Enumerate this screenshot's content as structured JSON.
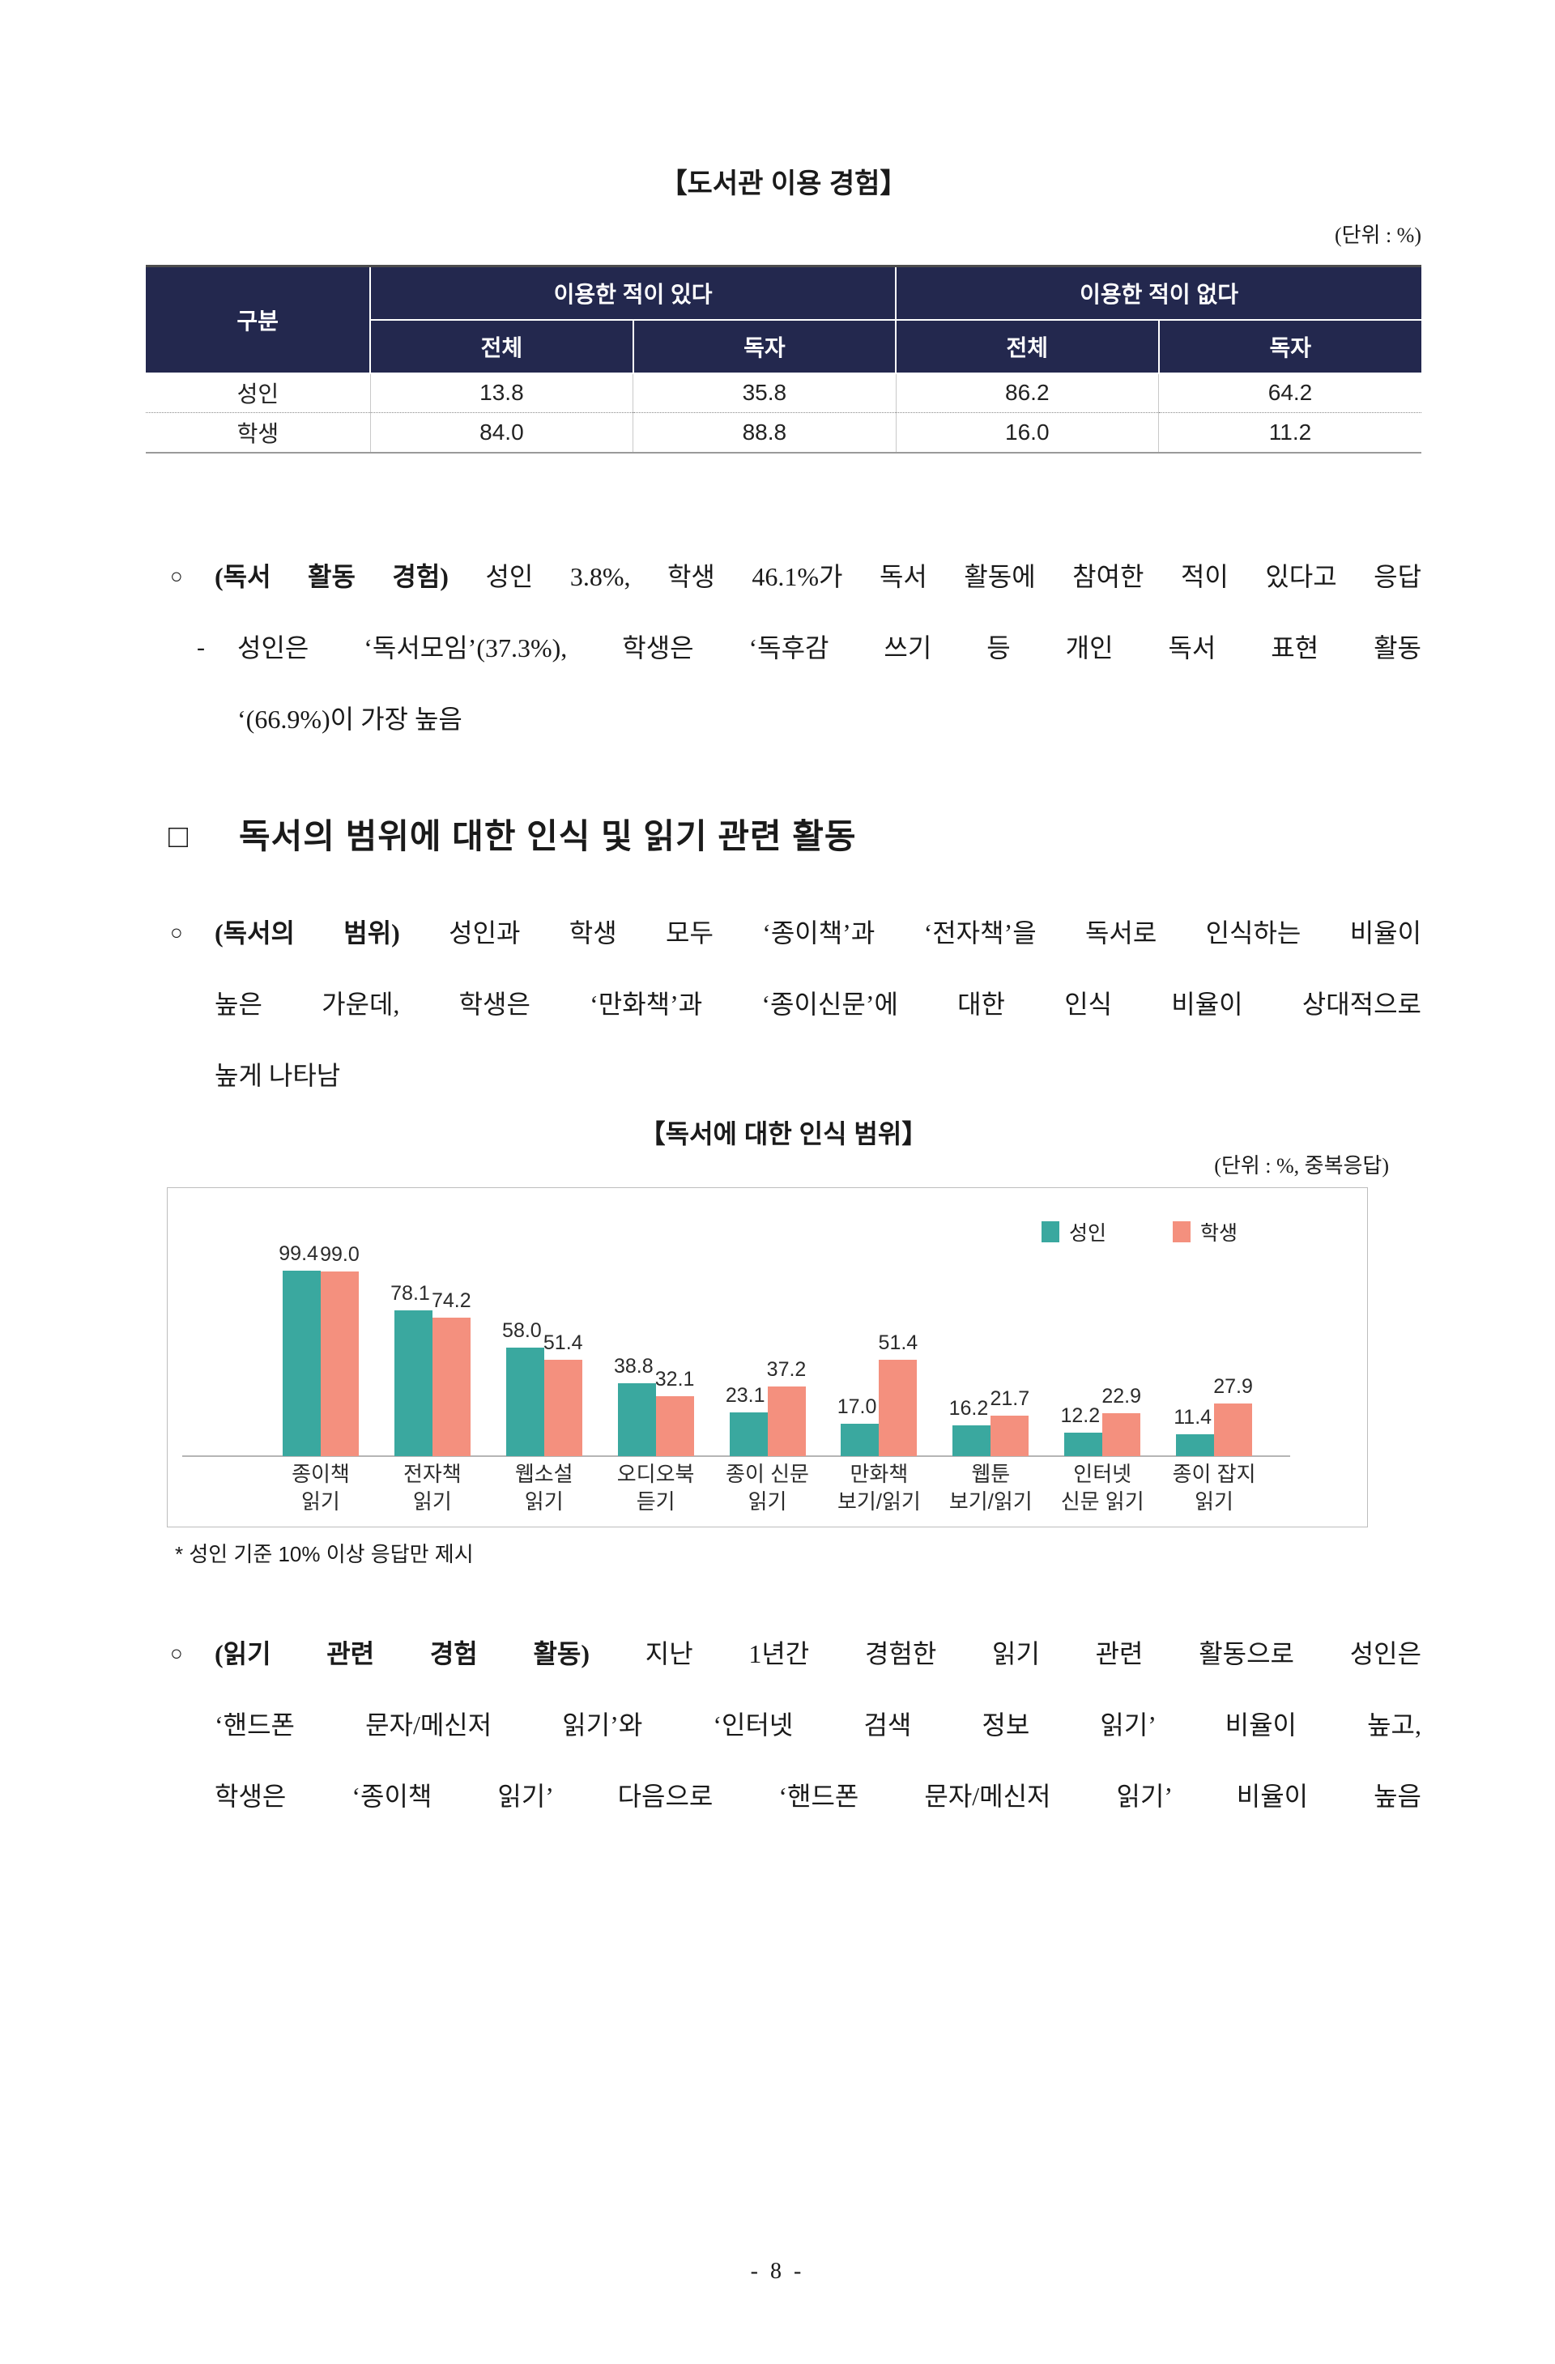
{
  "palette": {
    "table_header_bg": "#23284e",
    "adult_color": "#3aa89f",
    "student_color": "#f4907e",
    "text_color": "#1a1a1a"
  },
  "doc": {
    "page_number": "- 8 -"
  },
  "table_section": {
    "title": "【도서관 이용 경험】",
    "unit_label": "(단위 : %)",
    "table": {
      "corner_header": "구분",
      "group_headers": [
        "이용한 적이 있다",
        "이용한 적이 없다"
      ],
      "sub_headers": [
        "전체",
        "독자",
        "전체",
        "독자"
      ],
      "rows": [
        {
          "label": "성인",
          "values": [
            "13.8",
            "35.8",
            "86.2",
            "64.2"
          ]
        },
        {
          "label": "학생",
          "values": [
            "84.0",
            "88.8",
            "16.0",
            "11.2"
          ]
        }
      ]
    }
  },
  "bullet_reading_activity": {
    "marker": "○",
    "bold": "(독서 활동 경험)",
    "rest": "성인 3.8%, 학생 46.1%가 독서 활동에 참여한 적이 있다고 응답",
    "sub_marker": "-",
    "sub_line1": "성인은 ‘독서모임’(37.3%), 학생은 ‘독후감 쓰기 등 개인 독서 표현 활동",
    "sub_line2": "‘(66.9%)이 가장 높음"
  },
  "section_heading": {
    "marker": "□",
    "text": "독서의 범위에 대한 인식 및 읽기 관련 활동"
  },
  "bullet_reading_scope": {
    "marker": "○",
    "bold": "(독서의 범위)",
    "rest": "성인과 학생 모두 ‘종이책’과 ‘전자책’을 독서로 인식하는 비율이",
    "line2": "높은 가운데, 학생은 ‘만화책’과 ‘종이신문’에 대한 인식 비율이 상대적으로",
    "line3": "높게 나타남"
  },
  "chart_section": {
    "title": "【독서에 대한 인식 범위】",
    "unit_label": "(단위 : %, 중복응답)",
    "footnote": "* 성인 기준 10% 이상 응답만 제시"
  },
  "chart_data": {
    "type": "bar",
    "title": "독서에 대한 인식 범위",
    "unit": "%",
    "categories": [
      [
        "종이책",
        "읽기"
      ],
      [
        "전자책",
        "읽기"
      ],
      [
        "웹소설",
        "읽기"
      ],
      [
        "오디오북",
        "듣기"
      ],
      [
        "종이 신문",
        "읽기"
      ],
      [
        "만화책",
        "보기/읽기"
      ],
      [
        "웹툰",
        "보기/읽기"
      ],
      [
        "인터넷",
        "신문 읽기"
      ],
      [
        "종이 잡지",
        "읽기"
      ]
    ],
    "series": [
      {
        "name": "성인",
        "color": "#3aa89f",
        "values": [
          99.4,
          78.1,
          58.0,
          38.8,
          23.1,
          17.0,
          16.2,
          12.2,
          11.4
        ]
      },
      {
        "name": "학생",
        "color": "#f4907e",
        "values": [
          99.0,
          74.2,
          51.4,
          32.1,
          37.2,
          51.4,
          21.7,
          22.9,
          27.9
        ]
      }
    ],
    "ylim": [
      0,
      110
    ],
    "grid": false,
    "legend_position": "top-right",
    "value_labels": true,
    "value_label_format": "one-decimal"
  },
  "bullet_reading_experience": {
    "marker": "○",
    "bold": "(읽기 관련 경험 활동)",
    "rest": "지난 1년간 경험한 읽기 관련 활동으로 성인은",
    "line2": "‘핸드폰 문자/메신저 읽기’와 ‘인터넷 검색 정보 읽기’ 비율이 높고,",
    "line3": "학생은 ‘종이책 읽기’ 다음으로 ‘핸드폰 문자/메신저 읽기’ 비율이 높음"
  }
}
